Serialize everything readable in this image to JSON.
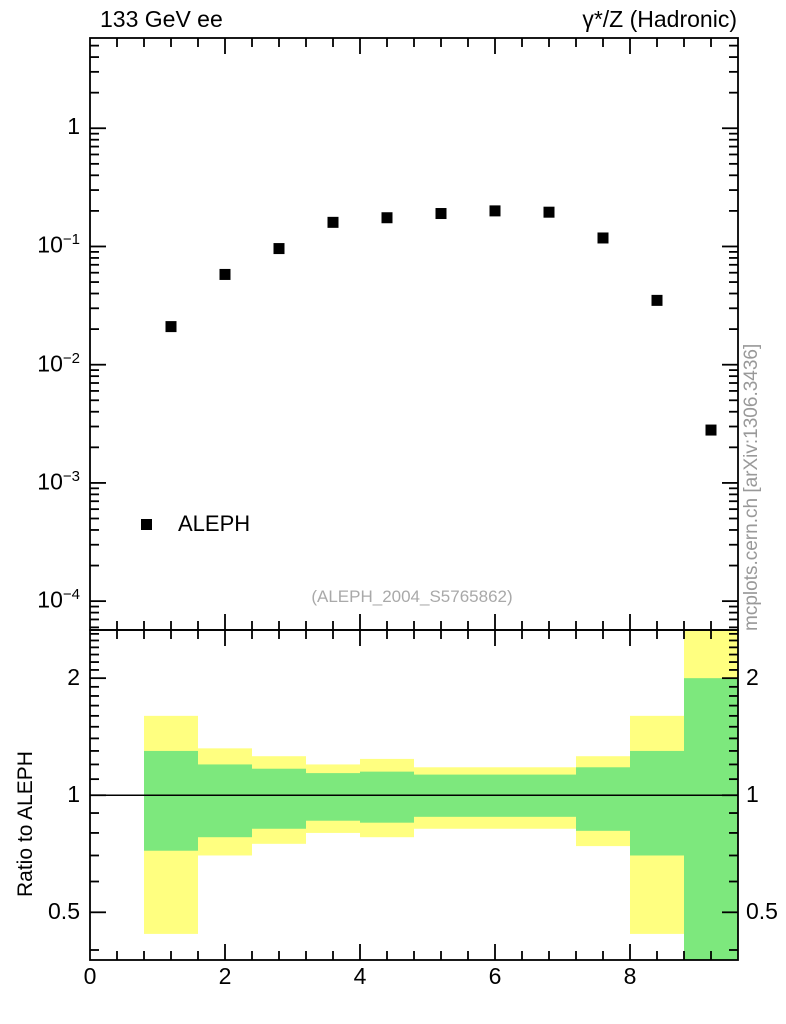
{
  "header": {
    "left_title": "133 GeV ee",
    "right_title": "γ*/Z (Hadronic)"
  },
  "annotations": {
    "analysis_id": "(ALEPH_2004_S5765862)",
    "watermark": "mcplots.cern.ch [arXiv:1306.3436]"
  },
  "legend": {
    "entries": [
      {
        "label": "ALEPH",
        "marker": "filled-square",
        "color": "#000000"
      }
    ]
  },
  "axes": {
    "ratio_ylabel": "Ratio to ALEPH"
  },
  "chart_data": [
    {
      "type": "scatter",
      "panel": "main",
      "xlim": [
        0,
        9.6
      ],
      "xticks": [
        0,
        2,
        4,
        6,
        8
      ],
      "x_minor_step": 0.4,
      "ylog": true,
      "ylim": [
        5.7e-05,
        5.8
      ],
      "yticks": [
        0.0001,
        0.001,
        0.01,
        0.1,
        1
      ],
      "series": [
        {
          "name": "ALEPH",
          "marker": "square",
          "color": "#000000",
          "x": [
            1.2,
            2.0,
            2.8,
            3.6,
            4.4,
            5.2,
            6.0,
            6.8,
            7.6,
            8.4,
            9.2
          ],
          "y": [
            0.021,
            0.058,
            0.096,
            0.16,
            0.175,
            0.19,
            0.2,
            0.195,
            0.118,
            0.035,
            0.0028
          ]
        }
      ]
    },
    {
      "type": "band",
      "panel": "ratio",
      "ylog": true,
      "ylim": [
        0.377,
        2.66
      ],
      "yticks": [
        0.5,
        1,
        2
      ],
      "reference_line": 1,
      "colors": {
        "outer": "#ffff80",
        "inner": "#7de87d"
      },
      "bins": [
        {
          "x0": 0.8,
          "x1": 1.6,
          "yellow": [
            0.44,
            1.6
          ],
          "green": [
            0.72,
            1.3
          ]
        },
        {
          "x0": 1.6,
          "x1": 2.4,
          "yellow": [
            0.7,
            1.32
          ],
          "green": [
            0.78,
            1.2
          ]
        },
        {
          "x0": 2.4,
          "x1": 3.2,
          "yellow": [
            0.75,
            1.26
          ],
          "green": [
            0.82,
            1.17
          ]
        },
        {
          "x0": 3.2,
          "x1": 4.0,
          "yellow": [
            0.8,
            1.2
          ],
          "green": [
            0.86,
            1.14
          ]
        },
        {
          "x0": 4.0,
          "x1": 4.8,
          "yellow": [
            0.78,
            1.24
          ],
          "green": [
            0.85,
            1.15
          ]
        },
        {
          "x0": 4.8,
          "x1": 5.6,
          "yellow": [
            0.82,
            1.18
          ],
          "green": [
            0.88,
            1.13
          ]
        },
        {
          "x0": 5.6,
          "x1": 6.4,
          "yellow": [
            0.82,
            1.18
          ],
          "green": [
            0.88,
            1.13
          ]
        },
        {
          "x0": 6.4,
          "x1": 7.2,
          "yellow": [
            0.82,
            1.18
          ],
          "green": [
            0.88,
            1.13
          ]
        },
        {
          "x0": 7.2,
          "x1": 8.0,
          "yellow": [
            0.74,
            1.26
          ],
          "green": [
            0.81,
            1.18
          ]
        },
        {
          "x0": 8.0,
          "x1": 8.8,
          "yellow": [
            0.44,
            1.6
          ],
          "green": [
            0.7,
            1.3
          ]
        },
        {
          "x0": 8.8,
          "x1": 9.6,
          "yellow": [
            0.377,
            2.66
          ],
          "green": [
            0.377,
            2.0
          ]
        }
      ]
    }
  ]
}
